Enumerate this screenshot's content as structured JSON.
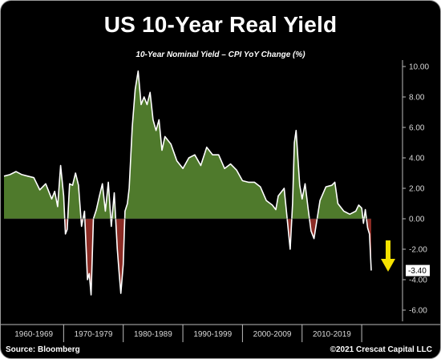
{
  "title": "US 10-Year Real Yield",
  "subtitle": "10-Year Nominal Yield – CPI YoY Change (%)",
  "source": "Source: Bloomberg",
  "copyright": "©2021 Crescat Capital LLC",
  "colors": {
    "background": "#000000",
    "line": "#ffffff",
    "positive_fill": "#4f7a2c",
    "negative_fill": "#8b2b24",
    "arrow": "#f5e200"
  },
  "chart_data": {
    "type": "area",
    "title": "US 10-Year Real Yield",
    "subtitle": "10-Year Nominal Yield – CPI YoY Change (%)",
    "x_range": [
      1960,
      2021.6
    ],
    "ylim": [
      -6,
      10
    ],
    "y_ticks": [
      10,
      8,
      6,
      4,
      2,
      0,
      -2,
      -4,
      -6
    ],
    "y_tick_labels": [
      "10.00",
      "8.00",
      "6.00",
      "4.00",
      "2.00",
      "0.00",
      "-2.00",
      "-4.00",
      "-6.00"
    ],
    "x_tick_labels": [
      "1960-1969",
      "1970-1979",
      "1980-1989",
      "1990-1999",
      "2000-2009",
      "2010-2019"
    ],
    "x_tick_boundaries": [
      1960,
      1970,
      1980,
      1990,
      2000,
      2010,
      2020
    ],
    "last_value_label": "-3.40",
    "last_value": -3.4,
    "grid": false,
    "series": [
      {
        "x": [
          1960,
          1961,
          1962,
          1963,
          1964,
          1965,
          1966,
          1967,
          1968,
          1968.5,
          1969,
          1969.5,
          1970,
          1970.3,
          1970.6,
          1971,
          1971.5,
          1972,
          1972.5,
          1973,
          1973.5,
          1974,
          1974.3,
          1974.6,
          1975,
          1975.5,
          1976,
          1976.5,
          1977,
          1977.5,
          1978,
          1978.5,
          1979,
          1979.3,
          1979.6,
          1980,
          1980.3,
          1980.7,
          1981,
          1981.5,
          1982,
          1982.5,
          1983,
          1983.5,
          1984,
          1984.5,
          1985,
          1985.5,
          1986,
          1986.5,
          1987,
          1988,
          1989,
          1990,
          1991,
          1992,
          1993,
          1994,
          1995,
          1996,
          1997,
          1998,
          1999,
          2000,
          2001,
          2002,
          2003,
          2004,
          2005,
          2005.6,
          2006,
          2007,
          2008,
          2008.4,
          2008.7,
          2009,
          2009.3,
          2009.6,
          2010,
          2010.5,
          2011,
          2011.5,
          2012,
          2013,
          2014,
          2015,
          2015.5,
          2016,
          2017,
          2018,
          2019,
          2019.5,
          2020,
          2020.3,
          2020.6,
          2021,
          2021.3,
          2021.6
        ],
        "values": [
          2.8,
          2.9,
          3.1,
          2.9,
          2.8,
          2.7,
          1.9,
          2.3,
          1.3,
          1.8,
          0.8,
          3.5,
          1.5,
          -1.0,
          -0.7,
          2.3,
          2.2,
          3.0,
          2.2,
          -0.5,
          0.5,
          -4.0,
          -3.6,
          -5.0,
          0.0,
          0.6,
          1.5,
          2.3,
          0.5,
          2.4,
          -0.5,
          1.7,
          -2.0,
          -3.5,
          -4.9,
          -3.0,
          0.5,
          1.0,
          2.0,
          6.0,
          8.5,
          9.7,
          7.5,
          8.0,
          7.5,
          8.3,
          6.5,
          5.8,
          6.5,
          4.5,
          5.4,
          4.9,
          3.8,
          3.3,
          4.0,
          4.2,
          3.5,
          4.7,
          4.2,
          4.2,
          3.3,
          3.6,
          3.2,
          2.5,
          2.4,
          2.4,
          2.1,
          1.2,
          0.9,
          0.6,
          1.5,
          2.0,
          -2.0,
          1.0,
          5.0,
          5.8,
          4.0,
          2.2,
          1.3,
          2.3,
          0.7,
          -0.8,
          -1.3,
          1.2,
          2.1,
          2.2,
          2.4,
          1.0,
          0.5,
          0.3,
          0.5,
          0.9,
          0.7,
          -0.3,
          0.6,
          -0.6,
          -1.0,
          -3.4
        ]
      }
    ]
  }
}
